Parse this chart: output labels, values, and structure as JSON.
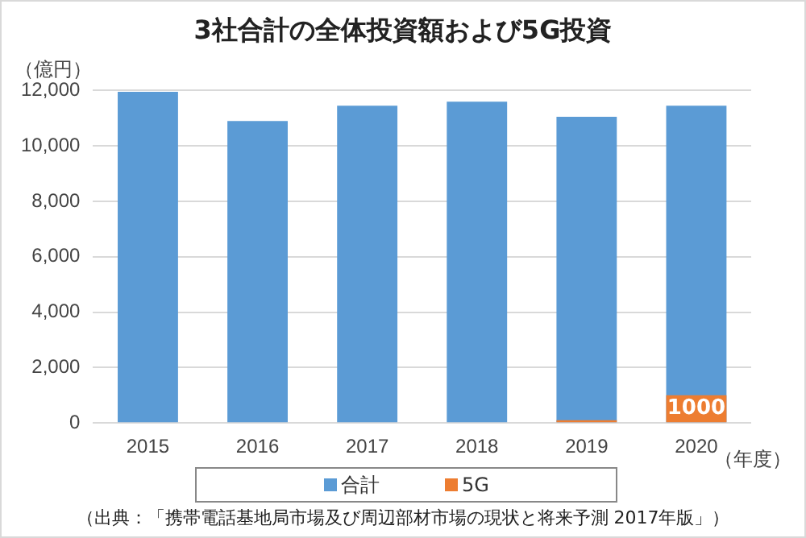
{
  "chart_data": {
    "type": "bar",
    "title": "3社合計の全体投資額および5G投資",
    "ylabel": "（億円）",
    "xlabel": "（年度）",
    "categories": [
      "2015",
      "2016",
      "2017",
      "2018",
      "2019",
      "2020"
    ],
    "series": [
      {
        "name": "合計",
        "color": "#5b9bd5",
        "values": [
          11950,
          10900,
          11450,
          11600,
          11050,
          11450
        ]
      },
      {
        "name": "5G",
        "color": "#ed7d31",
        "values": [
          null,
          null,
          null,
          null,
          100,
          1000
        ],
        "value_labels": [
          null,
          null,
          null,
          null,
          null,
          "1000"
        ]
      }
    ],
    "ylim": [
      0,
      12000
    ],
    "yticks": [
      {
        "value": 0,
        "label": "0"
      },
      {
        "value": 2000,
        "label": "2,000"
      },
      {
        "value": 4000,
        "label": "4,000"
      },
      {
        "value": 6000,
        "label": "6,000"
      },
      {
        "value": 8000,
        "label": "8,000"
      },
      {
        "value": 10000,
        "label": "10,000"
      },
      {
        "value": 12000,
        "label": "12,000"
      }
    ],
    "grid": "y",
    "legend": "bottom",
    "annotations": [
      "（出典：「携帯電話基地局市場及び周辺部材市場の現状と将来予測 2017年版」）"
    ]
  }
}
